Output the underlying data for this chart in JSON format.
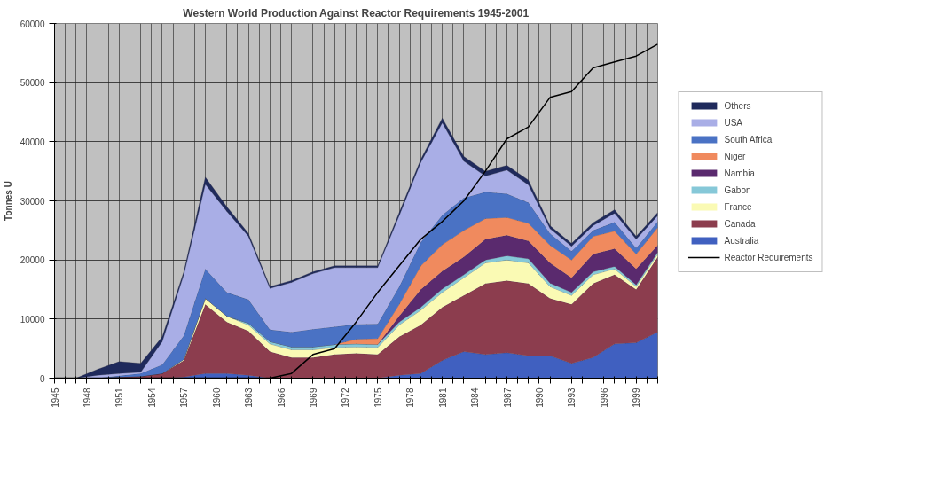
{
  "chart_data": {
    "type": "area",
    "stacked": true,
    "title": "Western World Production Against Reactor Requirements 1945-2001",
    "ylabel": "Tonnes U",
    "x": [
      1945,
      1947,
      1949,
      1951,
      1953,
      1955,
      1957,
      1959,
      1961,
      1963,
      1965,
      1967,
      1969,
      1971,
      1973,
      1975,
      1977,
      1979,
      1981,
      1983,
      1985,
      1987,
      1989,
      1991,
      1993,
      1995,
      1997,
      1999,
      2001
    ],
    "series": [
      {
        "name": "Australia",
        "color": "#4060c0",
        "values": [
          0,
          0,
          0,
          0,
          0,
          0,
          200,
          800,
          800,
          500,
          0,
          0,
          0,
          0,
          0,
          0,
          500,
          800,
          3000,
          4500,
          4000,
          4300,
          3800,
          3800,
          2500,
          3500,
          5800,
          6000,
          7800
        ]
      },
      {
        "name": "Canada",
        "color": "#8c3d4e",
        "values": [
          0,
          0,
          0,
          200,
          300,
          800,
          2800,
          11700,
          8700,
          7500,
          4500,
          3500,
          3500,
          4000,
          4200,
          4000,
          6500,
          8200,
          9000,
          9500,
          12000,
          12200,
          12200,
          9700,
          10000,
          12500,
          11700,
          9000,
          12700
        ]
      },
      {
        "name": "France",
        "color": "#fafab4",
        "values": [
          0,
          0,
          0,
          0,
          0,
          0,
          200,
          1000,
          1000,
          1000,
          1300,
          1300,
          1300,
          1200,
          1100,
          1200,
          2000,
          2500,
          2500,
          3000,
          3500,
          3500,
          3500,
          2000,
          1500,
          1500,
          1000,
          500,
          500
        ]
      },
      {
        "name": "Gabon",
        "color": "#86c8d8",
        "values": [
          0,
          0,
          0,
          0,
          0,
          0,
          0,
          0,
          0,
          300,
          400,
          500,
          500,
          500,
          500,
          500,
          500,
          500,
          600,
          500,
          500,
          700,
          700,
          600,
          500,
          500,
          400,
          300,
          300
        ]
      },
      {
        "name": "Nambia",
        "color": "#5a2a6e",
        "values": [
          0,
          0,
          0,
          0,
          0,
          0,
          0,
          0,
          0,
          0,
          0,
          0,
          0,
          0,
          0,
          0,
          1000,
          3000,
          3000,
          3000,
          3500,
          3500,
          3000,
          3400,
          2500,
          3000,
          3000,
          2700,
          1200
        ]
      },
      {
        "name": "Niger",
        "color": "#f08a5e",
        "values": [
          0,
          0,
          0,
          0,
          0,
          0,
          0,
          0,
          0,
          0,
          0,
          0,
          0,
          0,
          800,
          1000,
          2000,
          4000,
          4500,
          4500,
          3500,
          3000,
          3000,
          3000,
          3000,
          3000,
          3000,
          2500,
          3000
        ]
      },
      {
        "name": "South Africa",
        "color": "#4a72c4",
        "values": [
          0,
          0,
          0,
          200,
          500,
          1500,
          4000,
          5000,
          4000,
          4000,
          2000,
          2500,
          3000,
          3000,
          2500,
          2500,
          3000,
          4000,
          5000,
          5500,
          4500,
          4000,
          3500,
          2000,
          1500,
          1000,
          1500,
          1000,
          1000
        ]
      },
      {
        "name": "USA",
        "color": "#a9aee6",
        "values": [
          0,
          0,
          500,
          400,
          200,
          3900,
          10300,
          14300,
          13700,
          10700,
          7000,
          8400,
          9400,
          10000,
          9600,
          9500,
          12000,
          13500,
          15600,
          6200,
          2700,
          4000,
          3000,
          800,
          800,
          800,
          1500,
          1500,
          1000
        ]
      },
      {
        "name": "Others",
        "color": "#1f2a5c",
        "values": [
          0,
          0,
          1000,
          2000,
          1500,
          800,
          500,
          1200,
          800,
          500,
          300,
          300,
          300,
          300,
          300,
          300,
          500,
          500,
          800,
          800,
          800,
          800,
          800,
          500,
          500,
          500,
          600,
          500,
          500
        ]
      },
      {
        "name": "Reactor Requirements",
        "type": "line",
        "color": "#000000",
        "values": [
          0,
          0,
          0,
          0,
          0,
          0,
          0,
          0,
          0,
          0,
          0,
          800,
          4000,
          5000,
          9500,
          14500,
          19000,
          23500,
          26500,
          30000,
          35000,
          40500,
          42500,
          47500,
          48500,
          52500,
          53500,
          54500,
          56500
        ]
      }
    ],
    "xlim": [
      1945,
      2001
    ],
    "xticks": [
      1945,
      {
        "value": 1946,
        "label": null
      },
      {
        "value": 1947,
        "label": null
      },
      1948,
      {
        "value": 1949,
        "label": null
      },
      {
        "value": 1950,
        "label": null
      },
      1951,
      {
        "value": 1952,
        "label": null
      },
      {
        "value": 1953,
        "label": null
      },
      1954,
      {
        "value": 1955,
        "label": null
      },
      {
        "value": 1956,
        "label": null
      },
      1957,
      {
        "value": 1958,
        "label": null
      },
      {
        "value": 1959,
        "label": null
      },
      1960,
      {
        "value": 1961,
        "label": null
      },
      {
        "value": 1962,
        "label": null
      },
      1963,
      {
        "value": 1964,
        "label": null
      },
      {
        "value": 1965,
        "label": null
      },
      1966,
      {
        "value": 1967,
        "label": null
      },
      {
        "value": 1968,
        "label": null
      },
      1969,
      {
        "value": 1970,
        "label": null
      },
      {
        "value": 1971,
        "label": null
      },
      1972,
      {
        "value": 1973,
        "label": null
      },
      {
        "value": 1974,
        "label": null
      },
      1975,
      {
        "value": 1976,
        "label": null
      },
      {
        "value": 1977,
        "label": null
      },
      1978,
      {
        "value": 1979,
        "label": null
      },
      {
        "value": 1980,
        "label": null
      },
      1981,
      {
        "value": 1982,
        "label": null
      },
      {
        "value": 1983,
        "label": null
      },
      1984,
      {
        "value": 1985,
        "label": null
      },
      {
        "value": 1986,
        "label": null
      },
      1987,
      {
        "value": 1988,
        "label": null
      },
      {
        "value": 1989,
        "label": null
      },
      1990,
      {
        "value": 1991,
        "label": null
      },
      {
        "value": 1992,
        "label": null
      },
      1993,
      {
        "value": 1994,
        "label": null
      },
      {
        "value": 1995,
        "label": null
      },
      1996,
      {
        "value": 1997,
        "label": null
      },
      {
        "value": 1998,
        "label": null
      },
      1999,
      {
        "value": 2000,
        "label": null
      },
      {
        "value": 2001,
        "label": null
      }
    ],
    "ylim": [
      0,
      60000
    ],
    "yticks": [
      0,
      10000,
      20000,
      30000,
      40000,
      50000,
      60000
    ],
    "grid": true,
    "legend": "right"
  }
}
